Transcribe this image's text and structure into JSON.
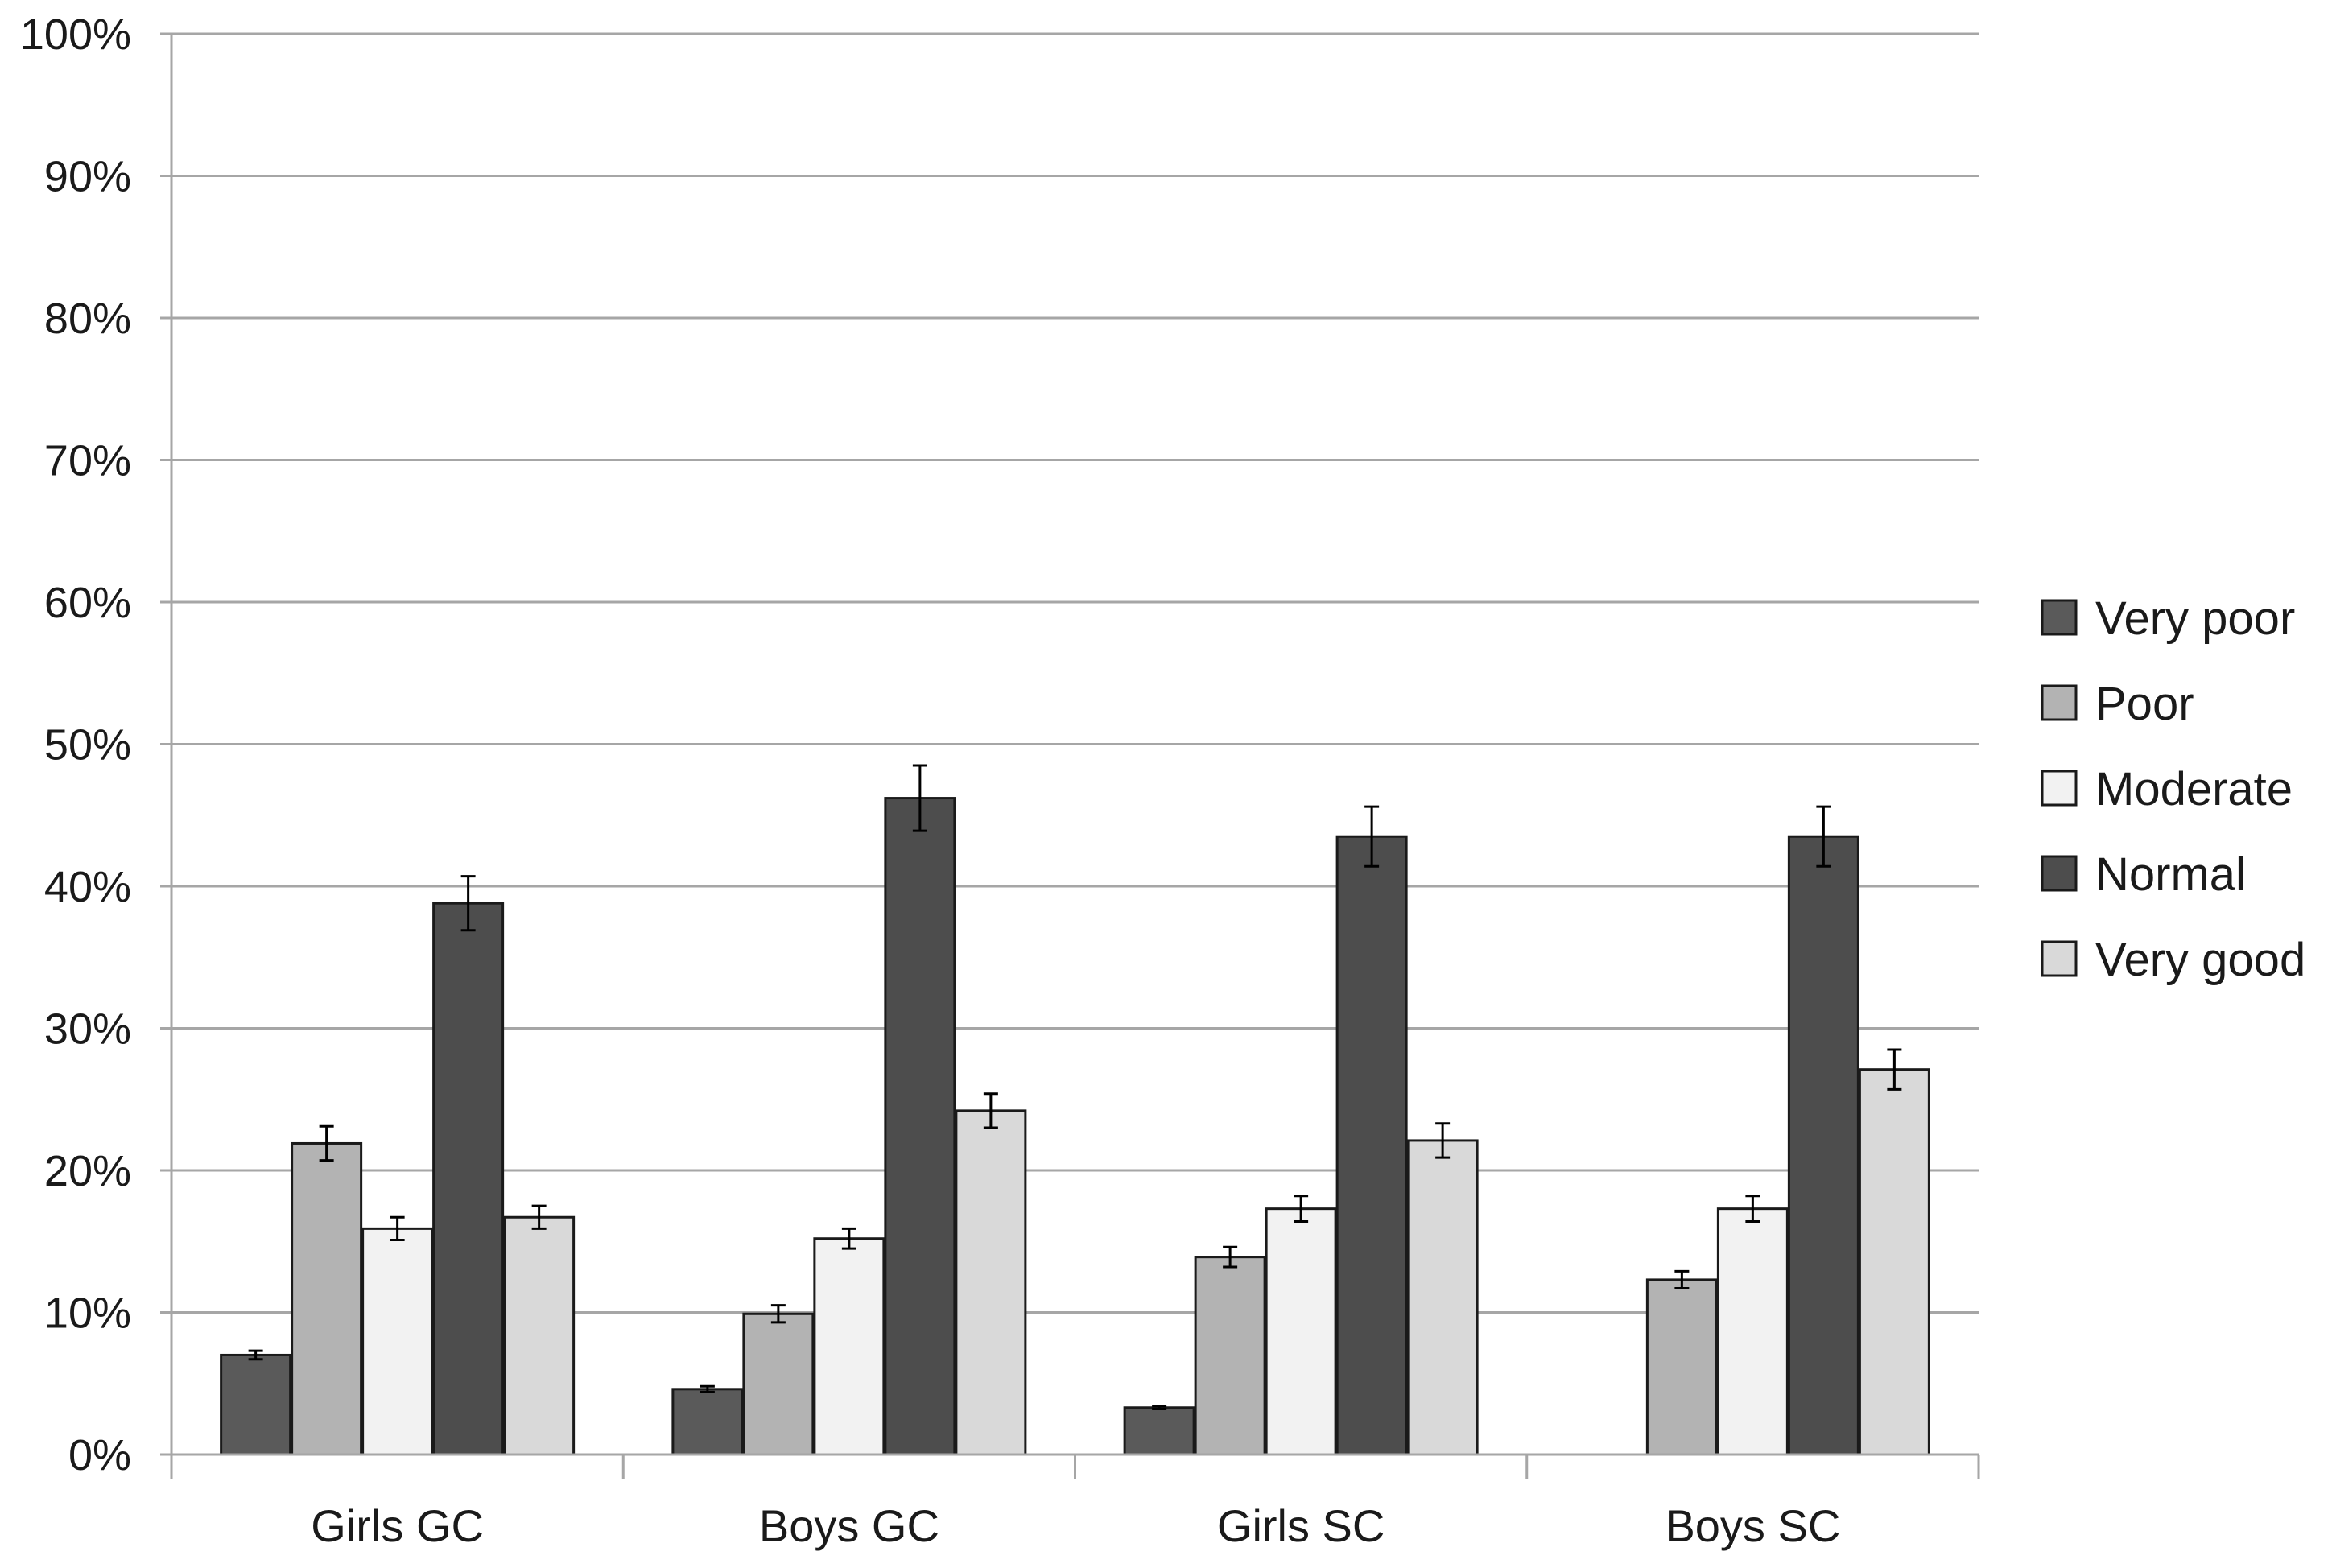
{
  "chart_data": {
    "type": "bar",
    "title": "",
    "xlabel": "",
    "ylabel": "",
    "ylim": [
      0,
      100
    ],
    "y_ticks": [
      "0%",
      "10%",
      "20%",
      "30%",
      "40%",
      "50%",
      "60%",
      "70%",
      "80%",
      "90%",
      "100%"
    ],
    "grid": true,
    "legend_position": "right",
    "categories": [
      "Girls GC",
      "Boys GC",
      "Girls SC",
      "Boys SC"
    ],
    "series": [
      {
        "name": "Very poor",
        "color": "#5a5a5a",
        "values": [
          7.0,
          4.6,
          3.3,
          null
        ],
        "errors": [
          0.3,
          0.2,
          0.1,
          null
        ]
      },
      {
        "name": "Poor",
        "color": "#b3b3b3",
        "values": [
          21.9,
          9.9,
          13.9,
          12.3
        ],
        "errors": [
          1.2,
          0.6,
          0.7,
          0.6
        ]
      },
      {
        "name": "Moderate",
        "color": "#f2f2f2",
        "values": [
          15.9,
          15.2,
          17.3,
          17.3
        ],
        "errors": [
          0.8,
          0.7,
          0.9,
          0.9
        ]
      },
      {
        "name": "Normal",
        "color": "#4d4d4d",
        "values": [
          38.8,
          46.2,
          43.5,
          43.5
        ],
        "errors": [
          1.9,
          2.3,
          2.1,
          2.1
        ]
      },
      {
        "name": "Very good",
        "color": "#d9d9d9",
        "values": [
          16.7,
          24.2,
          22.1,
          27.1
        ],
        "errors": [
          0.8,
          1.2,
          1.2,
          1.4
        ]
      }
    ]
  }
}
